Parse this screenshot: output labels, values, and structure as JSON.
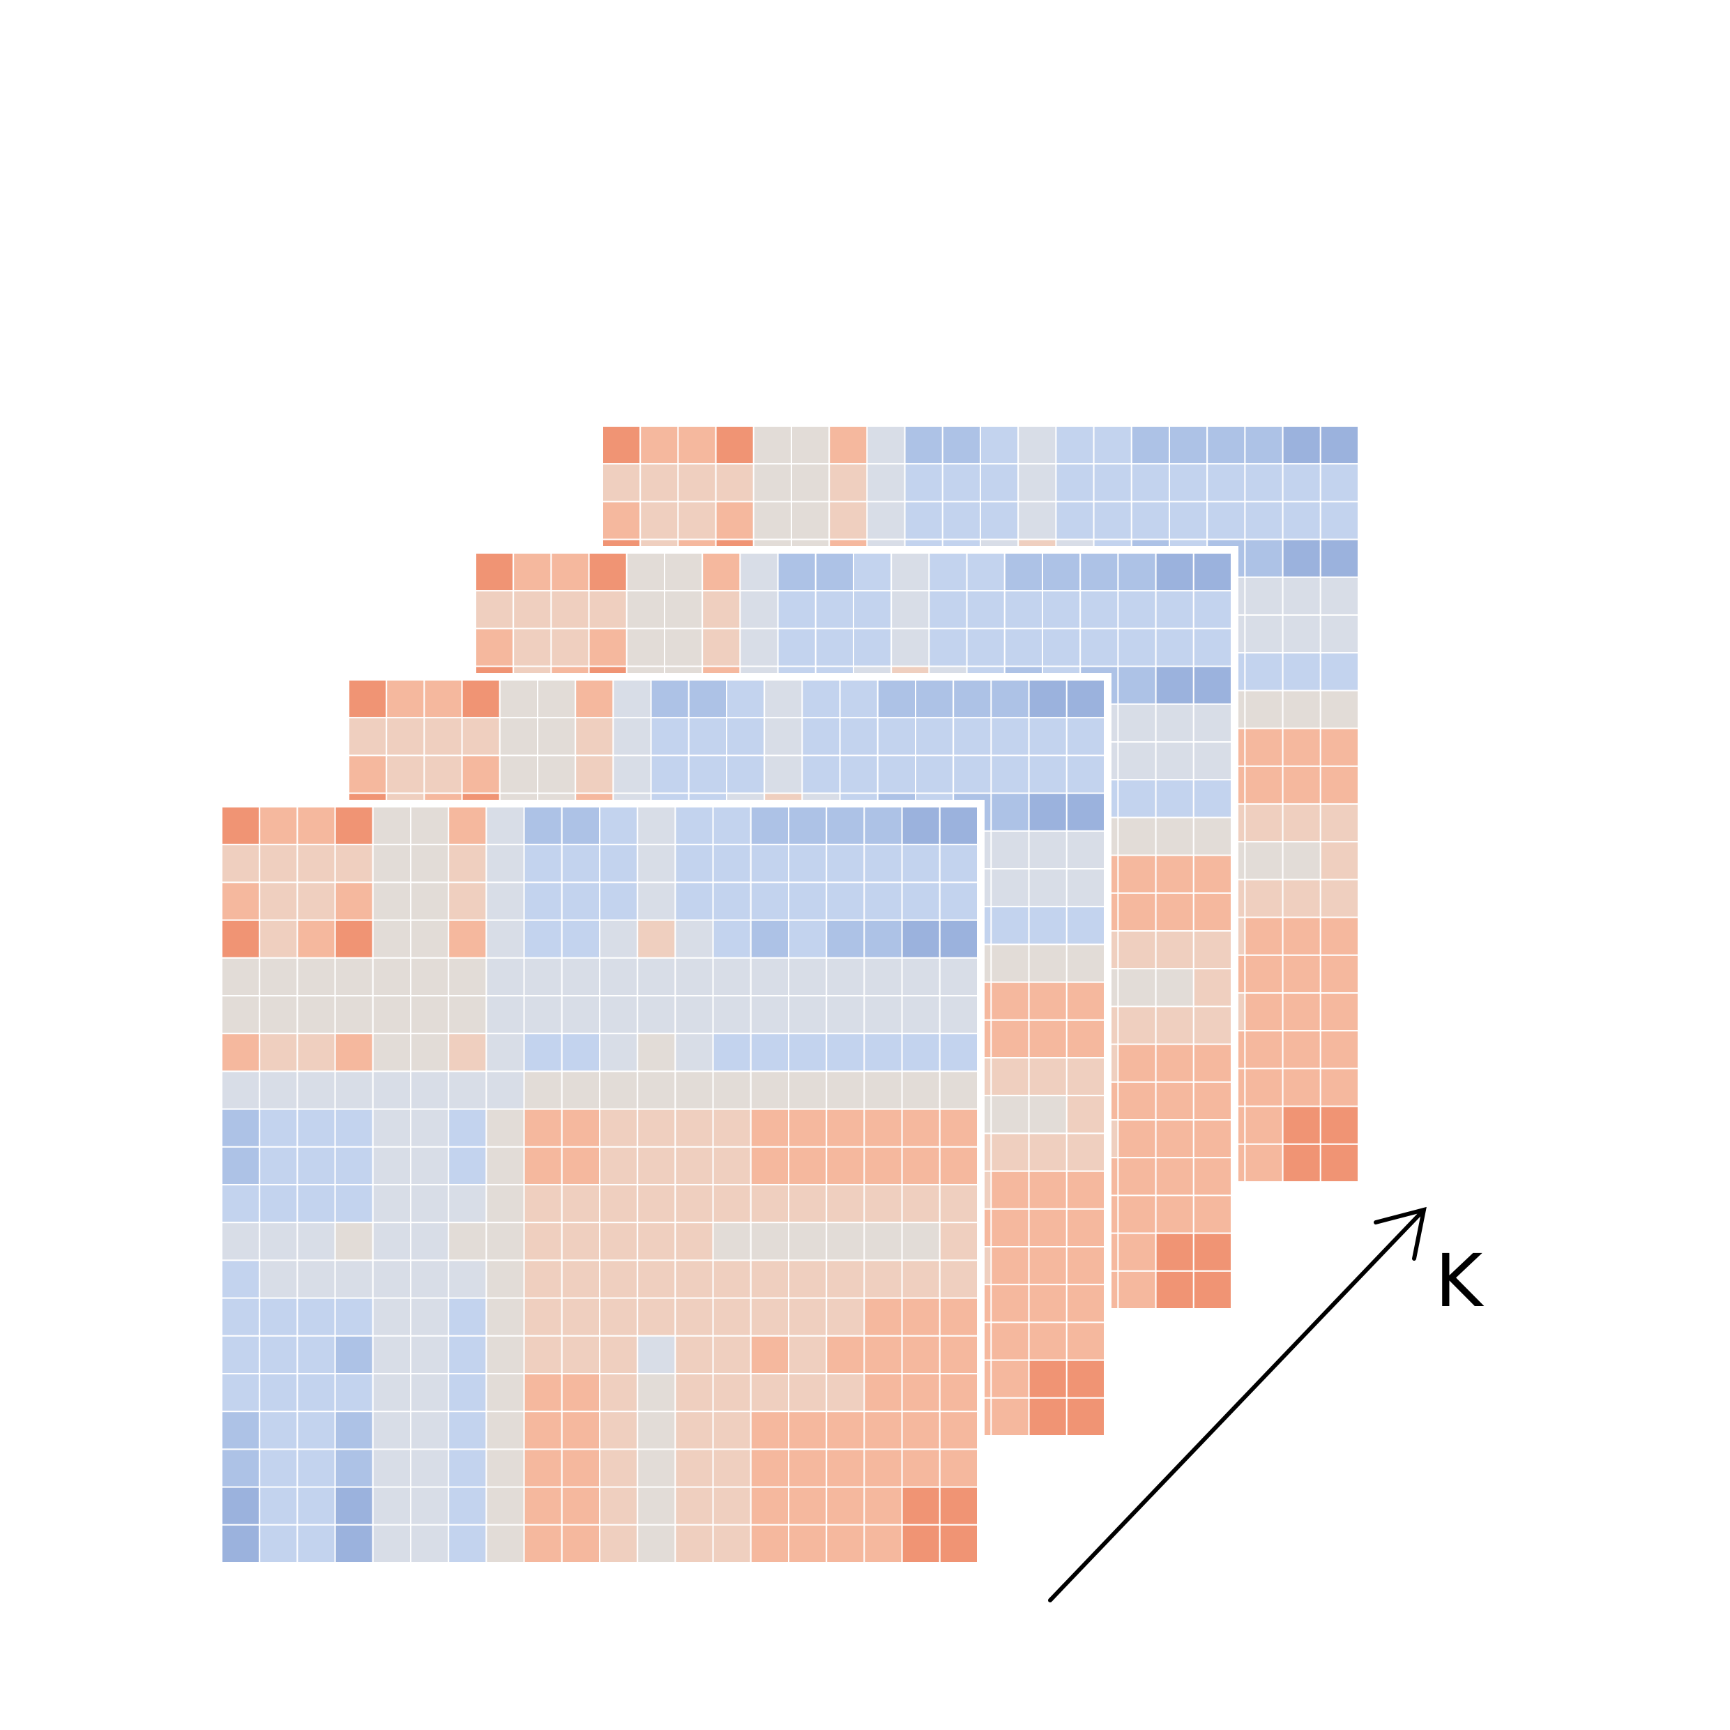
{
  "diagram": {
    "axis_label": "K",
    "layer_count": 4,
    "grid_rows": 20,
    "grid_cols": 20,
    "colors": {
      "background": "#ffffff",
      "cell_border": "#ffffff",
      "arrow": "#000000",
      "palette": {
        "-3": "#9bb2dd",
        "-2": "#adc2e6",
        "-1": "#c3d3ee",
        "0": "#d8dde7",
        "1": "#e2dcd7",
        "2": "#efcfbf",
        "3": "#f5b89e",
        "4": "#f09474"
      }
    },
    "heatmap_levels": [
      [
        4,
        3,
        3,
        4,
        1,
        1,
        3,
        0,
        -2,
        -2,
        -1,
        0,
        -1,
        -1,
        -2,
        -2,
        -2,
        -2,
        -3,
        -3
      ],
      [
        2,
        2,
        2,
        2,
        1,
        1,
        2,
        0,
        -1,
        -1,
        -1,
        0,
        -1,
        -1,
        -1,
        -1,
        -1,
        -1,
        -1,
        -1
      ],
      [
        3,
        2,
        2,
        3,
        1,
        1,
        2,
        0,
        -1,
        -1,
        -1,
        0,
        -1,
        -1,
        -1,
        -1,
        -1,
        -1,
        -1,
        -1
      ],
      [
        4,
        2,
        3,
        4,
        1,
        1,
        3,
        0,
        -1,
        -1,
        0,
        2,
        0,
        -1,
        -2,
        -1,
        -2,
        -2,
        -3,
        -3
      ],
      [
        1,
        1,
        1,
        1,
        1,
        1,
        1,
        0,
        0,
        0,
        0,
        0,
        0,
        0,
        0,
        0,
        0,
        0,
        0,
        0
      ],
      [
        1,
        1,
        1,
        1,
        1,
        1,
        1,
        0,
        0,
        0,
        0,
        0,
        0,
        0,
        0,
        0,
        0,
        0,
        0,
        0
      ],
      [
        3,
        2,
        2,
        3,
        1,
        1,
        2,
        0,
        -1,
        -1,
        0,
        1,
        0,
        -1,
        -1,
        -1,
        -1,
        -1,
        -1,
        -1
      ],
      [
        0,
        0,
        0,
        0,
        0,
        0,
        0,
        0,
        1,
        1,
        1,
        1,
        1,
        1,
        1,
        1,
        1,
        1,
        1,
        1
      ],
      [
        -2,
        -1,
        -1,
        -1,
        0,
        0,
        -1,
        1,
        3,
        3,
        2,
        2,
        2,
        2,
        3,
        3,
        3,
        3,
        3,
        3
      ],
      [
        -2,
        -1,
        -1,
        -1,
        0,
        0,
        -1,
        1,
        3,
        3,
        2,
        2,
        2,
        2,
        3,
        3,
        3,
        3,
        3,
        3
      ],
      [
        -1,
        -1,
        -1,
        -1,
        0,
        0,
        0,
        1,
        2,
        2,
        2,
        2,
        2,
        2,
        2,
        2,
        2,
        2,
        2,
        2
      ],
      [
        0,
        0,
        0,
        1,
        0,
        0,
        1,
        1,
        2,
        2,
        2,
        2,
        2,
        1,
        1,
        1,
        1,
        1,
        1,
        2
      ],
      [
        -1,
        0,
        0,
        0,
        0,
        0,
        0,
        1,
        2,
        2,
        2,
        2,
        2,
        2,
        2,
        2,
        2,
        2,
        2,
        2
      ],
      [
        -1,
        -1,
        -1,
        -1,
        0,
        0,
        -1,
        1,
        2,
        2,
        2,
        2,
        2,
        2,
        2,
        2,
        2,
        3,
        3,
        3
      ],
      [
        -1,
        -1,
        -1,
        -2,
        0,
        0,
        -1,
        1,
        2,
        2,
        2,
        0,
        2,
        2,
        3,
        2,
        3,
        3,
        3,
        3
      ],
      [
        -1,
        -1,
        -1,
        -1,
        0,
        0,
        -1,
        1,
        3,
        3,
        2,
        1,
        2,
        2,
        2,
        2,
        2,
        3,
        3,
        3
      ],
      [
        -2,
        -1,
        -1,
        -2,
        0,
        0,
        -1,
        1,
        3,
        3,
        2,
        1,
        2,
        2,
        3,
        3,
        3,
        3,
        3,
        3
      ],
      [
        -2,
        -1,
        -1,
        -2,
        0,
        0,
        -1,
        1,
        3,
        3,
        2,
        1,
        2,
        2,
        3,
        3,
        3,
        3,
        3,
        3
      ],
      [
        -3,
        -1,
        -1,
        -3,
        0,
        0,
        -1,
        1,
        3,
        3,
        2,
        1,
        2,
        2,
        3,
        3,
        3,
        3,
        4,
        4
      ],
      [
        -3,
        -1,
        -1,
        -3,
        0,
        0,
        -1,
        1,
        3,
        3,
        2,
        1,
        2,
        2,
        3,
        3,
        3,
        3,
        4,
        4
      ]
    ]
  }
}
